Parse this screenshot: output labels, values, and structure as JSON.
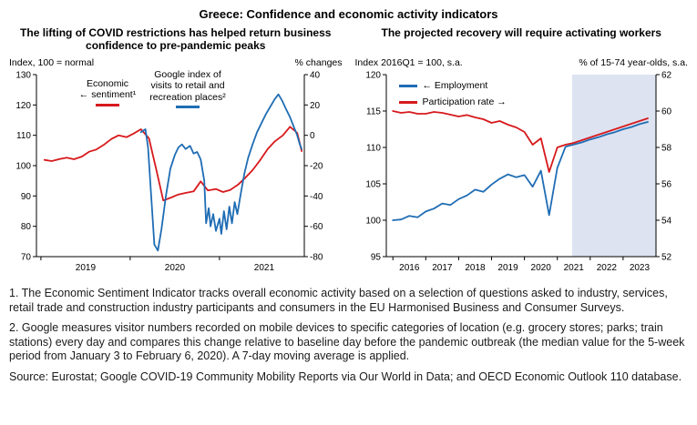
{
  "figure": {
    "title": "Greece: Confidence and economic activity indicators"
  },
  "chart_data": [
    {
      "type": "line",
      "title": "The lifting of COVID restrictions has helped return business confidence to pre-pandemic peaks",
      "left_axis_label": "Index, 100 = normal",
      "right_axis_label": "% changes",
      "left_ylim": [
        70,
        130
      ],
      "right_ylim": [
        -80,
        40
      ],
      "left_yticks": [
        70,
        80,
        90,
        100,
        110,
        120,
        130
      ],
      "right_yticks": [
        -80,
        -60,
        -40,
        -20,
        0,
        20,
        40
      ],
      "x_range": [
        2018.95,
        2021.95
      ],
      "xtick_marks": [
        2019,
        2020,
        2021
      ],
      "xtick_labels": [
        {
          "x": 2019.5,
          "label": "2019"
        },
        {
          "x": 2020.5,
          "label": "2020"
        },
        {
          "x": 2021.5,
          "label": "2021"
        }
      ],
      "grid": false,
      "legend": [
        {
          "text": "Economic\n← sentiment¹",
          "color": "#d7191c"
        },
        {
          "text": "Google index of\nvisits to retail and\nrecreation places²",
          "color": "#1f6db4"
        }
      ],
      "series": [
        {
          "name": "Economic sentiment",
          "axis": "left",
          "color": "#d7191c",
          "points": [
            [
              2019.04,
              101.9
            ],
            [
              2019.12,
              101.5
            ],
            [
              2019.21,
              102.2
            ],
            [
              2019.29,
              102.6
            ],
            [
              2019.37,
              102.1
            ],
            [
              2019.46,
              103.0
            ],
            [
              2019.54,
              104.6
            ],
            [
              2019.62,
              105.3
            ],
            [
              2019.71,
              107.0
            ],
            [
              2019.79,
              108.8
            ],
            [
              2019.87,
              110.0
            ],
            [
              2019.96,
              109.4
            ],
            [
              2020.04,
              110.6
            ],
            [
              2020.12,
              112.0
            ],
            [
              2020.21,
              109.0
            ],
            [
              2020.29,
              99.0
            ],
            [
              2020.37,
              88.5
            ],
            [
              2020.46,
              89.5
            ],
            [
              2020.54,
              90.5
            ],
            [
              2020.62,
              91.0
            ],
            [
              2020.71,
              91.5
            ],
            [
              2020.79,
              94.8
            ],
            [
              2020.87,
              91.8
            ],
            [
              2020.96,
              92.3
            ],
            [
              2021.04,
              91.3
            ],
            [
              2021.12,
              92.0
            ],
            [
              2021.21,
              93.8
            ],
            [
              2021.29,
              96.0
            ],
            [
              2021.37,
              98.5
            ],
            [
              2021.46,
              102.0
            ],
            [
              2021.54,
              105.5
            ],
            [
              2021.62,
              108.0
            ],
            [
              2021.71,
              110.0
            ],
            [
              2021.79,
              112.8
            ],
            [
              2021.87,
              110.8
            ],
            [
              2021.92,
              104.8
            ]
          ]
        },
        {
          "name": "Google index of visits to retail and recreation places",
          "axis": "right",
          "color": "#1f6db4",
          "points": [
            [
              2020.12,
              2
            ],
            [
              2020.17,
              4
            ],
            [
              2020.2,
              -8
            ],
            [
              2020.23,
              -35
            ],
            [
              2020.27,
              -72
            ],
            [
              2020.31,
              -76
            ],
            [
              2020.35,
              -62
            ],
            [
              2020.4,
              -40
            ],
            [
              2020.45,
              -22
            ],
            [
              2020.5,
              -13
            ],
            [
              2020.54,
              -8
            ],
            [
              2020.58,
              -6
            ],
            [
              2020.62,
              -9
            ],
            [
              2020.67,
              -7
            ],
            [
              2020.71,
              -12
            ],
            [
              2020.75,
              -11
            ],
            [
              2020.79,
              -16
            ],
            [
              2020.83,
              -30
            ],
            [
              2020.85,
              -58
            ],
            [
              2020.88,
              -48
            ],
            [
              2020.9,
              -60
            ],
            [
              2020.93,
              -52
            ],
            [
              2020.96,
              -63
            ],
            [
              2021.0,
              -55
            ],
            [
              2021.02,
              -65
            ],
            [
              2021.05,
              -50
            ],
            [
              2021.08,
              -62
            ],
            [
              2021.11,
              -47
            ],
            [
              2021.14,
              -58
            ],
            [
              2021.17,
              -44
            ],
            [
              2021.2,
              -52
            ],
            [
              2021.24,
              -38
            ],
            [
              2021.28,
              -25
            ],
            [
              2021.32,
              -15
            ],
            [
              2021.37,
              -6
            ],
            [
              2021.42,
              2
            ],
            [
              2021.47,
              8
            ],
            [
              2021.52,
              14
            ],
            [
              2021.57,
              19
            ],
            [
              2021.62,
              24
            ],
            [
              2021.66,
              27
            ],
            [
              2021.7,
              23
            ],
            [
              2021.74,
              18
            ],
            [
              2021.79,
              12
            ],
            [
              2021.83,
              6
            ],
            [
              2021.87,
              0
            ],
            [
              2021.9,
              -6
            ],
            [
              2021.92,
              -9
            ]
          ]
        }
      ]
    },
    {
      "type": "line",
      "title": "The projected recovery will require activating workers",
      "left_axis_label": "Index 2016Q1 = 100, s.a.",
      "right_axis_label": "% of 15-74 year-olds, s.a.",
      "left_ylim": [
        95,
        120
      ],
      "right_ylim": [
        52,
        62
      ],
      "left_yticks": [
        95,
        100,
        105,
        110,
        115,
        120
      ],
      "right_yticks": [
        52,
        54,
        56,
        58,
        60,
        62
      ],
      "x_range": [
        2015.8,
        2024.0
      ],
      "xtick_marks": [
        2016,
        2017,
        2018,
        2019,
        2020,
        2021,
        2022,
        2023
      ],
      "xtick_labels": [
        {
          "x": 2016.5,
          "label": "2016"
        },
        {
          "x": 2017.5,
          "label": "2017"
        },
        {
          "x": 2018.5,
          "label": "2018"
        },
        {
          "x": 2019.5,
          "label": "2019"
        },
        {
          "x": 2020.5,
          "label": "2020"
        },
        {
          "x": 2021.5,
          "label": "2021"
        },
        {
          "x": 2022.5,
          "label": "2022"
        },
        {
          "x": 2023.5,
          "label": "2023"
        }
      ],
      "grid": false,
      "projection_start_x": 2021.45,
      "projection_fill": "#dde3f1",
      "legend": [
        {
          "text": "← Employment",
          "color": "#1f6db4"
        },
        {
          "text": "Participation rate →",
          "color": "#d7191c"
        }
      ],
      "series": [
        {
          "name": "Employment",
          "axis": "left",
          "color": "#1f6db4",
          "points": [
            [
              2016.0,
              100.0
            ],
            [
              2016.25,
              100.1
            ],
            [
              2016.5,
              100.6
            ],
            [
              2016.75,
              100.4
            ],
            [
              2017.0,
              101.2
            ],
            [
              2017.25,
              101.6
            ],
            [
              2017.5,
              102.3
            ],
            [
              2017.75,
              102.1
            ],
            [
              2018.0,
              102.9
            ],
            [
              2018.25,
              103.4
            ],
            [
              2018.5,
              104.2
            ],
            [
              2018.75,
              103.9
            ],
            [
              2019.0,
              104.9
            ],
            [
              2019.25,
              105.7
            ],
            [
              2019.5,
              106.3
            ],
            [
              2019.75,
              105.9
            ],
            [
              2020.0,
              106.2
            ],
            [
              2020.25,
              104.6
            ],
            [
              2020.5,
              106.8
            ],
            [
              2020.75,
              100.7
            ],
            [
              2021.0,
              107.2
            ],
            [
              2021.25,
              110.1
            ],
            [
              2021.5,
              110.4
            ],
            [
              2021.75,
              110.7
            ],
            [
              2022.0,
              111.1
            ],
            [
              2022.25,
              111.4
            ],
            [
              2022.5,
              111.8
            ],
            [
              2022.75,
              112.1
            ],
            [
              2023.0,
              112.5
            ],
            [
              2023.25,
              112.8
            ],
            [
              2023.5,
              113.2
            ],
            [
              2023.75,
              113.5
            ]
          ]
        },
        {
          "name": "Participation rate",
          "axis": "right",
          "color": "#d7191c",
          "points": [
            [
              2016.0,
              60.0
            ],
            [
              2016.25,
              59.9
            ],
            [
              2016.5,
              59.95
            ],
            [
              2016.75,
              59.85
            ],
            [
              2017.0,
              59.85
            ],
            [
              2017.25,
              59.95
            ],
            [
              2017.5,
              59.9
            ],
            [
              2017.75,
              59.8
            ],
            [
              2018.0,
              59.7
            ],
            [
              2018.25,
              59.78
            ],
            [
              2018.5,
              59.65
            ],
            [
              2018.75,
              59.55
            ],
            [
              2019.0,
              59.35
            ],
            [
              2019.25,
              59.45
            ],
            [
              2019.5,
              59.25
            ],
            [
              2019.75,
              59.1
            ],
            [
              2020.0,
              58.85
            ],
            [
              2020.25,
              58.15
            ],
            [
              2020.5,
              58.5
            ],
            [
              2020.75,
              56.65
            ],
            [
              2021.0,
              58.0
            ],
            [
              2021.25,
              58.15
            ],
            [
              2021.5,
              58.25
            ],
            [
              2021.75,
              58.4
            ],
            [
              2022.0,
              58.55
            ],
            [
              2022.25,
              58.7
            ],
            [
              2022.5,
              58.85
            ],
            [
              2022.75,
              59.0
            ],
            [
              2023.0,
              59.15
            ],
            [
              2023.25,
              59.3
            ],
            [
              2023.5,
              59.45
            ],
            [
              2023.75,
              59.6
            ]
          ]
        }
      ]
    }
  ],
  "footnotes": [
    "1. The Economic Sentiment Indicator tracks overall economic activity based on a selection of questions asked to industry, services, retail trade and construction industry participants and consumers in the EU Harmonised Business and Consumer Surveys.",
    "2. Google measures visitor numbers recorded on mobile devices to specific categories of location (e.g. grocery stores; parks; train stations) every day and compares this change relative to baseline day before the pandemic outbreak (the median value for the 5-week period from January 3 to February 6, 2020). A 7-day moving average is applied."
  ],
  "source": "Source: Eurostat; Google COVID-19 Community Mobility Reports via Our World in Data; and OECD Economic Outlook 110 database."
}
